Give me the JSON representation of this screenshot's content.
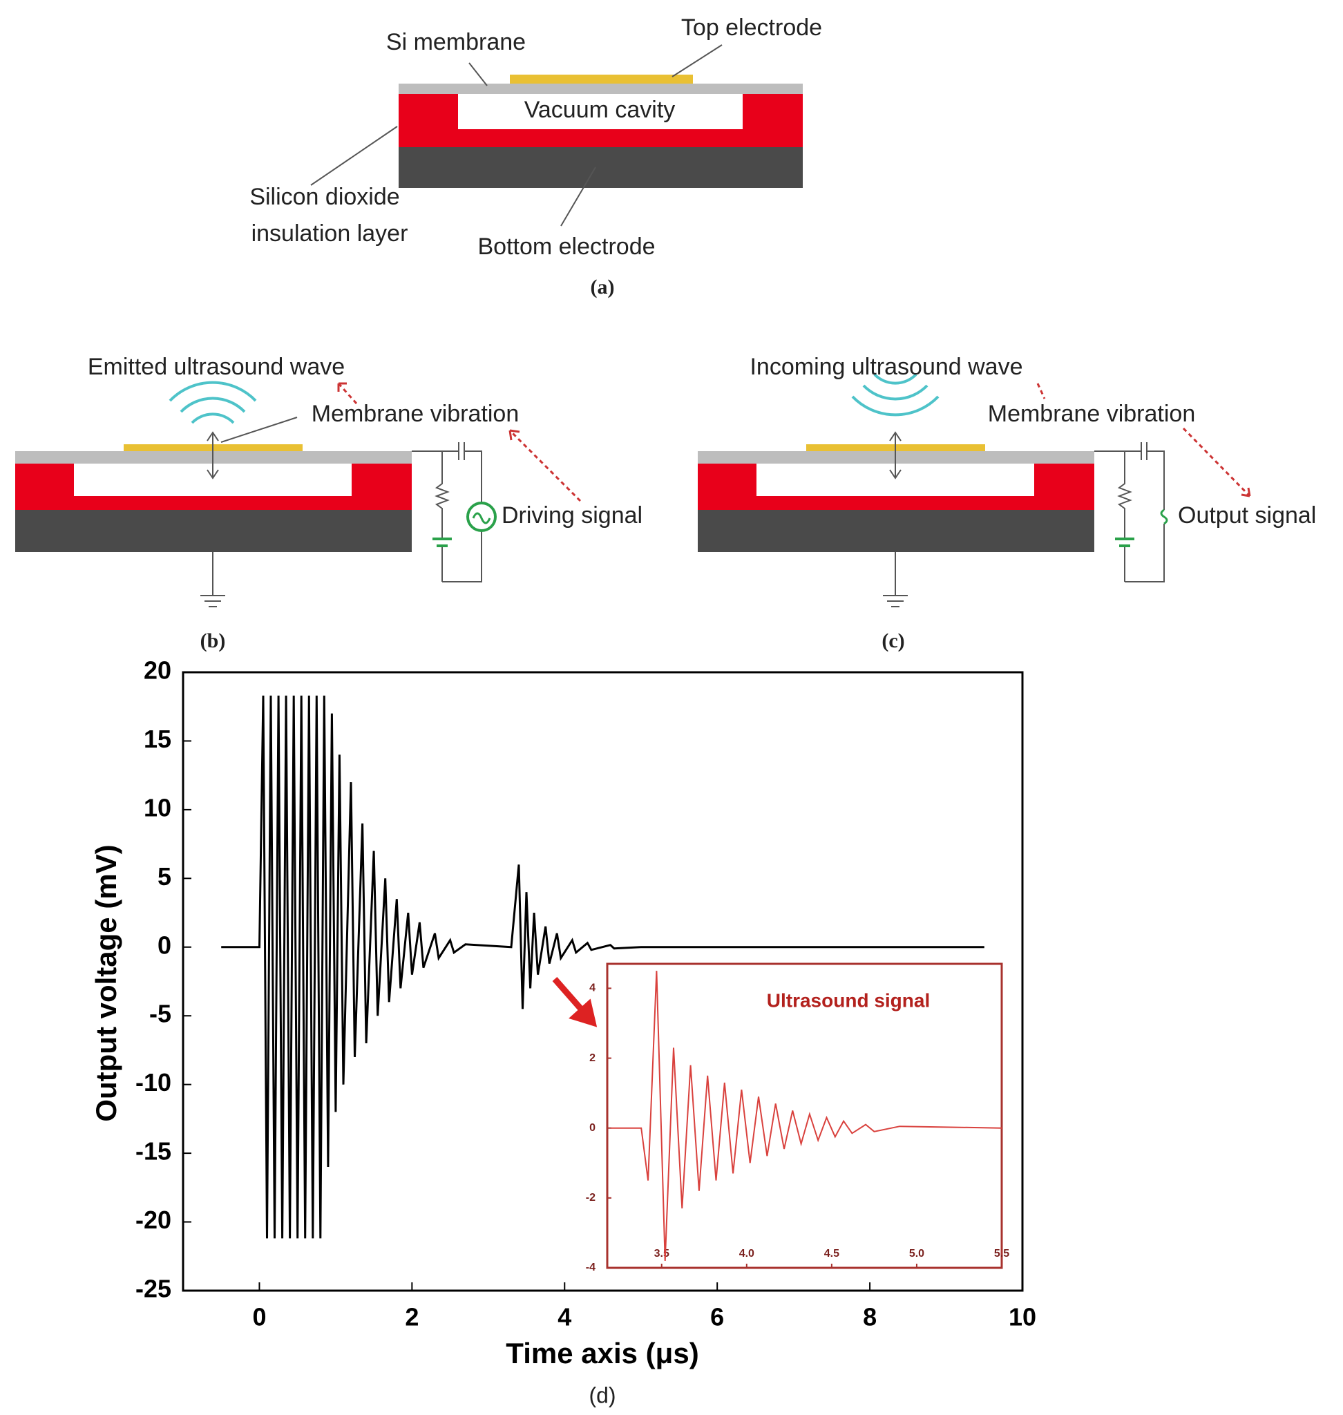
{
  "diagrams": {
    "a": {
      "si_membrane": "Si membrane",
      "top_electrode": "Top electrode",
      "vacuum_cavity": "Vacuum cavity",
      "sio2_line1": "Silicon dioxide",
      "sio2_line2": "insulation layer",
      "bottom_electrode": "Bottom electrode",
      "caption": "(a)"
    },
    "b": {
      "wave": "Emitted ultrasound wave",
      "vibration": "Membrane vibration",
      "signal": "Driving signal",
      "caption": "(b)"
    },
    "c": {
      "wave": "Incoming ultrasound wave",
      "vibration": "Membrane vibration",
      "signal": "Output signal",
      "caption": "(c)"
    }
  },
  "chart_data": [
    {
      "type": "line",
      "caption": "(d)",
      "xlabel": "Time axis (μs)",
      "ylabel": "Output voltage (mV)",
      "xlim": [
        -1,
        10
      ],
      "ylim": [
        -25,
        20
      ],
      "xticks": [
        0,
        2,
        4,
        6,
        8,
        10
      ],
      "yticks": [
        -25,
        -20,
        -15,
        -10,
        -5,
        0,
        5,
        10,
        15,
        20
      ],
      "x": [
        -0.5,
        -0.05,
        0,
        0.05,
        0.1,
        0.15,
        0.2,
        0.25,
        0.3,
        0.35,
        0.4,
        0.45,
        0.5,
        0.55,
        0.6,
        0.65,
        0.7,
        0.75,
        0.8,
        0.85,
        0.9,
        0.95,
        1.0,
        1.05,
        1.1,
        1.2,
        1.25,
        1.35,
        1.4,
        1.5,
        1.55,
        1.65,
        1.7,
        1.8,
        1.85,
        1.95,
        2.0,
        2.1,
        2.15,
        2.3,
        2.35,
        2.5,
        2.55,
        2.7,
        3.3,
        3.4,
        3.45,
        3.5,
        3.55,
        3.6,
        3.65,
        3.75,
        3.8,
        3.9,
        3.95,
        4.1,
        4.15,
        4.3,
        4.35,
        4.6,
        4.65,
        5,
        9.5
      ],
      "series": [
        {
          "color": "#000000",
          "values": [
            0,
            0,
            0,
            18.3,
            -21.2,
            18.3,
            -21.2,
            18.3,
            -21.2,
            18.3,
            -21.2,
            18.3,
            -21.2,
            18.3,
            -21.2,
            18.3,
            -21.2,
            18.3,
            -21.2,
            18.3,
            -16,
            17,
            -12,
            14,
            -10,
            12,
            -8,
            9,
            -7,
            7,
            -5,
            5,
            -4,
            3.5,
            -3,
            2.5,
            -2,
            1.8,
            -1.5,
            1,
            -0.8,
            0.5,
            -0.4,
            0.2,
            0,
            6,
            -4.5,
            4,
            -3,
            2.5,
            -2,
            1.5,
            -1.2,
            1,
            -0.8,
            0.5,
            -0.4,
            0.3,
            -0.2,
            0.15,
            -0.1,
            0,
            0
          ]
        }
      ]
    },
    {
      "type": "line",
      "title": "Ultrasound signal",
      "frame_color": "#a8322e",
      "xlim": [
        3.18,
        5.5
      ],
      "ylim": [
        -4,
        4.7
      ],
      "xticks": [
        3.5,
        {
          "value": 4,
          "label": "4.0"
        },
        4.5,
        {
          "value": 5,
          "label": "5.0"
        },
        5.5
      ],
      "yticks": [
        -4,
        -2,
        0,
        2,
        4
      ],
      "x": [
        3.2,
        3.38,
        3.42,
        3.47,
        3.52,
        3.57,
        3.62,
        3.67,
        3.72,
        3.77,
        3.82,
        3.87,
        3.92,
        3.97,
        4.02,
        4.07,
        4.12,
        4.17,
        4.22,
        4.27,
        4.32,
        4.37,
        4.42,
        4.47,
        4.52,
        4.57,
        4.62,
        4.7,
        4.75,
        4.9,
        5.5
      ],
      "series": [
        {
          "color": "#d9413d",
          "values": [
            0,
            0,
            -1.5,
            4.5,
            -3.8,
            2.3,
            -2.3,
            1.8,
            -1.8,
            1.5,
            -1.5,
            1.3,
            -1.3,
            1.1,
            -1,
            0.9,
            -0.8,
            0.7,
            -0.6,
            0.5,
            -0.45,
            0.4,
            -0.35,
            0.3,
            -0.25,
            0.2,
            -0.15,
            0.1,
            -0.1,
            0.05,
            0
          ]
        }
      ]
    }
  ]
}
